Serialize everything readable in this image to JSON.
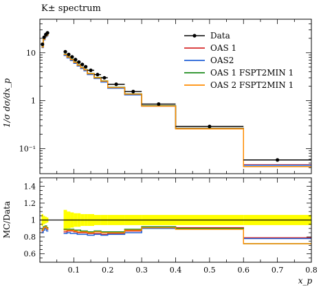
{
  "chart_data": {
    "type": "line",
    "title": "K± spectrum",
    "xlabel": "x_p",
    "ylabel": "1/σ dσ/dx_p",
    "ratio_ylabel": "MC/Data",
    "xlim": [
      0.0,
      0.8
    ],
    "ylim": [
      0.03,
      50
    ],
    "yscale": "log",
    "ratio_ylim": [
      0.5,
      1.5
    ],
    "x_ticks": [
      "0.1",
      "0.2",
      "0.3",
      "0.4",
      "0.5",
      "0.6",
      "0.7",
      "0.8"
    ],
    "y_ticks": [
      "10⁻¹",
      "1",
      "10"
    ],
    "ratio_ticks": [
      "0.6",
      "0.8",
      "1",
      "1.2",
      "1.4"
    ],
    "legend": {
      "placement": "top-right"
    },
    "bins": [
      [
        0.005,
        0.01
      ],
      [
        0.01,
        0.015
      ],
      [
        0.015,
        0.02
      ],
      [
        0.02,
        0.025
      ],
      [
        0.07,
        0.08
      ],
      [
        0.08,
        0.09
      ],
      [
        0.09,
        0.1
      ],
      [
        0.1,
        0.11
      ],
      [
        0.11,
        0.12
      ],
      [
        0.12,
        0.13
      ],
      [
        0.13,
        0.14
      ],
      [
        0.14,
        0.16
      ],
      [
        0.16,
        0.18
      ],
      [
        0.18,
        0.2
      ],
      [
        0.2,
        0.25
      ],
      [
        0.25,
        0.3
      ],
      [
        0.3,
        0.4
      ],
      [
        0.4,
        0.6
      ],
      [
        0.6,
        0.8
      ]
    ],
    "data": {
      "name": "Data",
      "color": "#000000",
      "values": [
        15,
        21,
        24,
        26,
        10.5,
        9.2,
        8.2,
        7.2,
        6.4,
        5.7,
        5.1,
        4.3,
        3.5,
        3.0,
        2.2,
        1.55,
        0.85,
        0.29,
        0.058
      ]
    },
    "series": [
      {
        "name": "OAS 1",
        "color": "#d62728",
        "values": [
          13,
          19,
          22,
          23,
          9.0,
          8.0,
          7.1,
          6.2,
          5.4,
          4.8,
          4.3,
          3.6,
          2.95,
          2.5,
          1.85,
          1.35,
          0.78,
          0.265,
          0.046
        ]
      },
      {
        "name": "OAS2",
        "color": "#1f5fd6",
        "values": [
          12.8,
          18.6,
          21.5,
          22.6,
          8.8,
          7.8,
          6.9,
          6.0,
          5.3,
          4.7,
          4.2,
          3.5,
          2.9,
          2.45,
          1.82,
          1.32,
          0.77,
          0.262,
          0.045
        ]
      },
      {
        "name": "OAS 1 FSPT2MIN 1",
        "color": "#1a8a1a",
        "values": [
          13.3,
          19.4,
          22.4,
          23.6,
          9.3,
          8.2,
          7.3,
          6.4,
          5.6,
          4.95,
          4.45,
          3.7,
          3.05,
          2.58,
          1.9,
          1.38,
          0.78,
          0.262,
          0.042
        ]
      },
      {
        "name": "OAS 2 FSPT2MIN 1",
        "color": "#ff8c00",
        "values": [
          13.1,
          19.1,
          22.1,
          23.3,
          9.2,
          8.1,
          7.2,
          6.3,
          5.5,
          4.9,
          4.4,
          3.65,
          3.0,
          2.55,
          1.88,
          1.37,
          0.77,
          0.258,
          0.042
        ]
      }
    ],
    "data_points": {
      "x": [
        0.0075,
        0.0125,
        0.0175,
        0.0225,
        0.075,
        0.085,
        0.095,
        0.105,
        0.115,
        0.125,
        0.135,
        0.15,
        0.17,
        0.19,
        0.225,
        0.275,
        0.35,
        0.5,
        0.7
      ]
    },
    "ratio_band": {
      "color": "#ffff00",
      "lo": [
        0.93,
        0.95,
        0.96,
        0.97,
        0.88,
        0.9,
        0.91,
        0.92,
        0.92,
        0.93,
        0.93,
        0.93,
        0.94,
        0.94,
        0.94,
        0.94,
        0.94,
        0.94,
        0.94
      ],
      "hi": [
        1.07,
        1.05,
        1.04,
        1.03,
        1.12,
        1.1,
        1.09,
        1.08,
        1.08,
        1.07,
        1.07,
        1.07,
        1.06,
        1.06,
        1.06,
        1.06,
        1.06,
        1.06,
        1.06
      ]
    },
    "ratios": {
      "OAS 1": [
        0.87,
        0.9,
        0.91,
        0.89,
        0.86,
        0.87,
        0.87,
        0.86,
        0.85,
        0.85,
        0.85,
        0.84,
        0.84,
        0.83,
        0.84,
        0.87,
        0.92,
        0.91,
        0.79
      ],
      "OAS2": [
        0.85,
        0.88,
        0.9,
        0.87,
        0.84,
        0.85,
        0.84,
        0.84,
        0.83,
        0.83,
        0.83,
        0.82,
        0.83,
        0.82,
        0.83,
        0.85,
        0.9,
        0.9,
        0.78
      ],
      "OAS 1 FSPT2MIN 1": [
        0.89,
        0.92,
        0.93,
        0.91,
        0.89,
        0.89,
        0.89,
        0.88,
        0.88,
        0.87,
        0.87,
        0.86,
        0.87,
        0.86,
        0.86,
        0.89,
        0.92,
        0.9,
        0.72
      ],
      "OAS 2 FSPT2MIN 1": [
        0.88,
        0.91,
        0.92,
        0.9,
        0.88,
        0.88,
        0.88,
        0.87,
        0.86,
        0.86,
        0.86,
        0.85,
        0.86,
        0.85,
        0.85,
        0.88,
        0.91,
        0.89,
        0.72
      ]
    }
  }
}
